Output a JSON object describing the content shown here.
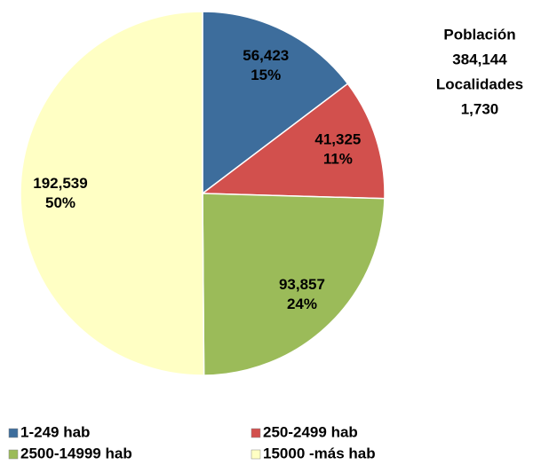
{
  "chart_data": {
    "type": "pie",
    "categories": [
      "1-249 hab",
      "250-2499 hab",
      "2500-14999 hab",
      "15000 -más hab"
    ],
    "values": [
      56423,
      41325,
      93857,
      192539
    ],
    "value_labels": [
      "56,423",
      "41,325",
      "93,857",
      "192,539"
    ],
    "percentages": [
      15,
      11,
      24,
      50
    ],
    "percentage_labels": [
      "15%",
      "11%",
      "24%",
      "50%"
    ],
    "colors": [
      "#3d6d9c",
      "#d2504d",
      "#9bbb59",
      "#ffffc4"
    ],
    "annotations": [
      "Población",
      "384,144",
      "Localidades",
      "1,730"
    ]
  }
}
